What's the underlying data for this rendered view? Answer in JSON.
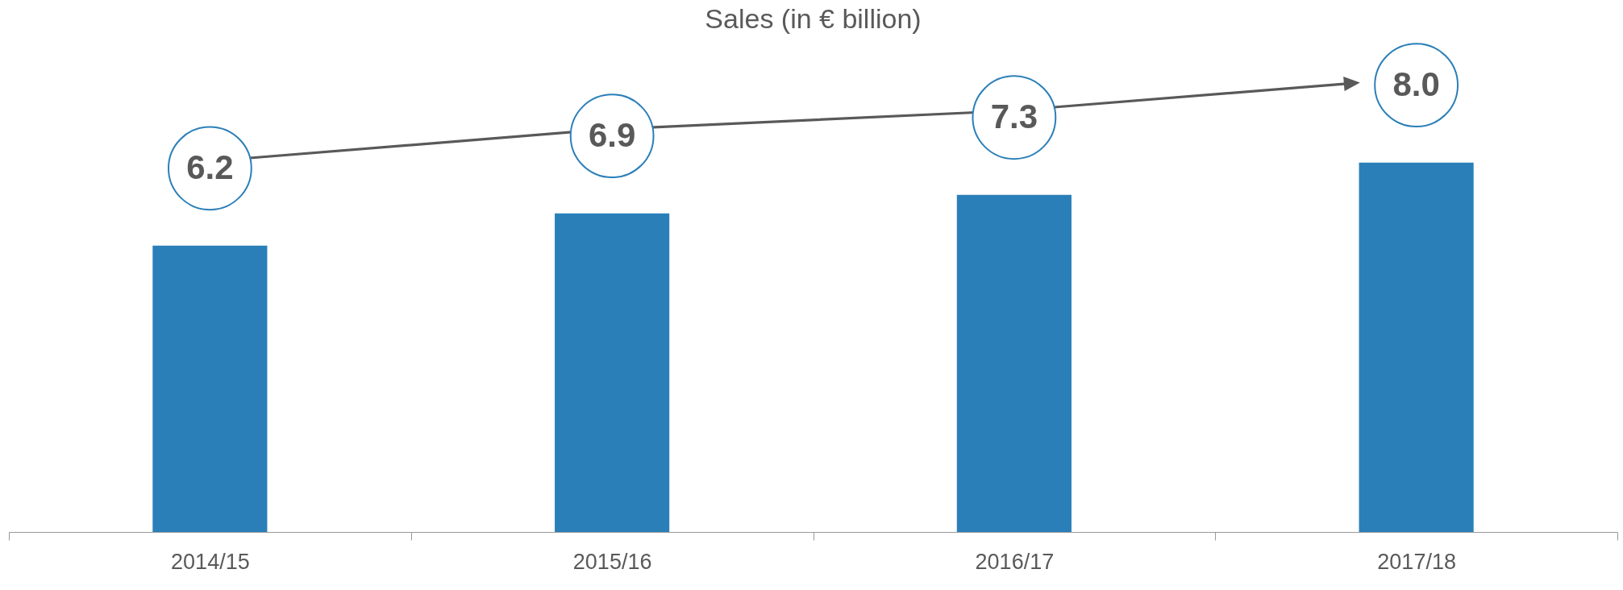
{
  "chart_data": {
    "type": "bar",
    "title": "Sales (in € billion)",
    "categories": [
      "2014/15",
      "2015/16",
      "2016/17",
      "2017/18"
    ],
    "values": [
      6.2,
      6.9,
      7.3,
      8.0
    ],
    "color": "#2a7fb8",
    "value_labels": [
      "6.2",
      "6.9",
      "7.3",
      "8.0"
    ]
  }
}
